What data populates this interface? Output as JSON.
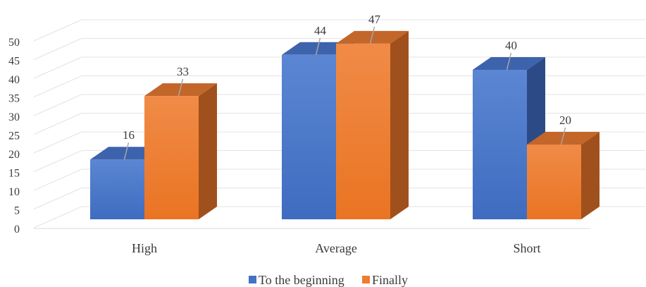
{
  "chart_data": {
    "type": "bar",
    "style": "3d-clustered-column",
    "categories": [
      "High",
      "Average",
      "Short"
    ],
    "series": [
      {
        "name": "To the beginning",
        "values": [
          16,
          44,
          40
        ],
        "color": "#4472C4"
      },
      {
        "name": "Finally",
        "values": [
          33,
          47,
          20
        ],
        "color": "#ED7D31"
      }
    ],
    "ylim": [
      0,
      50
    ],
    "yticks": [
      0,
      5,
      10,
      15,
      20,
      25,
      30,
      35,
      40,
      45,
      50
    ],
    "grid": true,
    "legend_position": "bottom",
    "data_labels": true
  }
}
